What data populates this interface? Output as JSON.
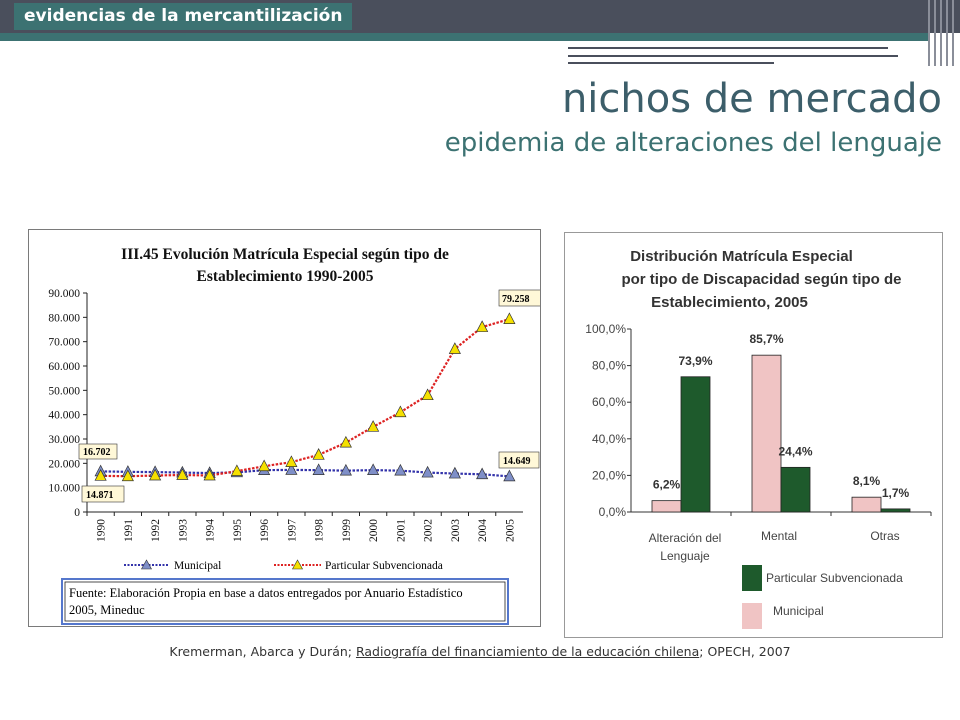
{
  "header": {
    "section_label": "evidencias de la mercantilización"
  },
  "slide": {
    "title": "nichos de mercado",
    "subtitle": "epidemia de alteraciones del lenguaje"
  },
  "footer": {
    "prefix": "Kremerman, Abarca y Durán; ",
    "link_text": "Radiografía del financiamiento de la educación chilena",
    "suffix": "; OPECH, 2007"
  },
  "colors": {
    "dark_bar": "#4a4f5c",
    "teal": "#3c7272",
    "title_color": "#3c5e6a"
  },
  "chart_data": [
    {
      "type": "line",
      "title": "III.45 Evolución Matrícula Especial según tipo de Establecimiento 1990-2005",
      "title_line1": "III.45 Evolución Matrícula Especial según tipo de",
      "title_line2": "Establecimiento 1990-2005",
      "x": [
        "1990",
        "1991",
        "1992",
        "1993",
        "1994",
        "1995",
        "1996",
        "1997",
        "1998",
        "1999",
        "2000",
        "2001",
        "2002",
        "2003",
        "2004",
        "2005"
      ],
      "ylim": [
        0,
        90000
      ],
      "y_ticks": [
        "0",
        "10.000",
        "20.000",
        "30.000",
        "40.000",
        "50.000",
        "60.000",
        "70.000",
        "80.000",
        "90.000"
      ],
      "grid": false,
      "legend_placement": "bottom",
      "series": [
        {
          "name": "Municipal",
          "color": "#3333aa",
          "marker_color": "#7f8fc8",
          "values": [
            16702,
            16500,
            16400,
            16200,
            16000,
            16300,
            17200,
            17300,
            17200,
            17000,
            17200,
            17000,
            16200,
            15800,
            15500,
            14649
          ]
        },
        {
          "name": "Particular Subvencionada",
          "color": "#dd2222",
          "marker_color": "#f5e000",
          "values": [
            14871,
            14700,
            15000,
            15200,
            15000,
            16800,
            18800,
            20500,
            23500,
            28500,
            35000,
            41000,
            48000,
            67000,
            76000,
            79258
          ]
        }
      ],
      "annotations": [
        "16.702",
        "14.871",
        "79.258",
        "14.649"
      ],
      "source_note_line1": "Fuente: Elaboración Propia en base a datos entregados por Anuario Estadístico",
      "source_note_line2": "2005, Mineduc"
    },
    {
      "type": "bar",
      "title_line1": "Distribución Matrícula Especial",
      "title_line2": "por tipo de Discapacidad según tipo de",
      "title_line3": "Establecimiento, 2005",
      "categories": [
        "Alteración del Lenguaje",
        "Mental",
        "Otras"
      ],
      "category_line1": "Alteración del",
      "category_line2": "Lenguaje",
      "category_2": "Mental",
      "category_3": "Otras",
      "ylim": [
        0,
        100
      ],
      "y_ticks": [
        "0,0%",
        "20,0%",
        "40,0%",
        "60,0%",
        "80,0%",
        "100,0%"
      ],
      "legend_placement": "bottom-right",
      "series": [
        {
          "name": "Municipal",
          "color": "#f0c4c4",
          "values": [
            6.2,
            85.7,
            8.1
          ],
          "labels": [
            "6,2%",
            "85,7%",
            "8,1%"
          ]
        },
        {
          "name": "Particular Subvencionada",
          "color": "#1e5a2c",
          "values": [
            73.9,
            24.4,
            1.7
          ],
          "labels": [
            "73,9%",
            "24,4%",
            "1,7%"
          ]
        }
      ]
    }
  ]
}
